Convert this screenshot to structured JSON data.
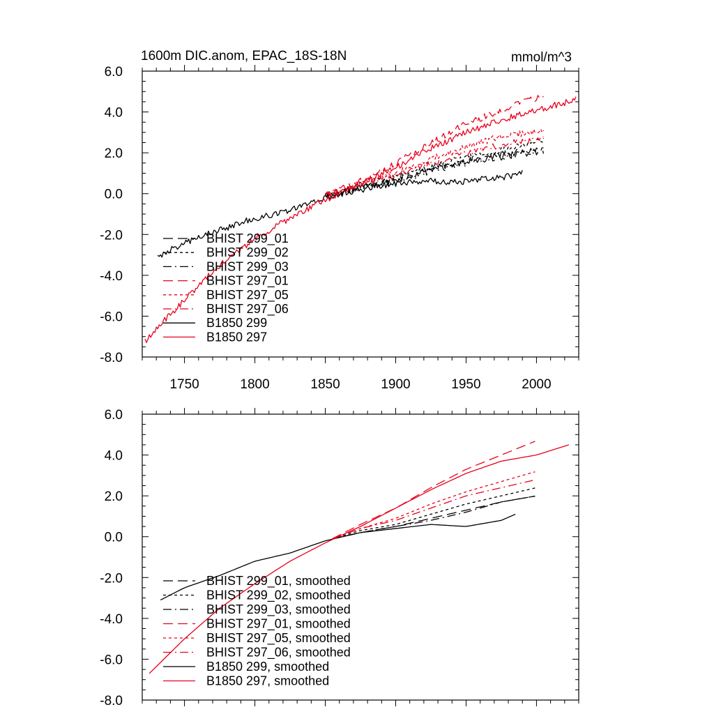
{
  "chart_data": [
    {
      "type": "line",
      "title": "1600m DIC.anom, EPAC_18S-18N",
      "units_label": "mmol/m^3",
      "xlabel": "",
      "ylabel": "",
      "xlim": [
        1720,
        2030
      ],
      "ylim": [
        -8.0,
        6.0
      ],
      "x_ticks": [
        1750,
        1800,
        1850,
        1900,
        1950,
        2000
      ],
      "x_tick_labels": [
        "1750",
        "1800",
        "1850",
        "1900",
        "1950",
        "2000"
      ],
      "y_ticks": [
        -8.0,
        -6.0,
        -4.0,
        -2.0,
        0.0,
        2.0,
        4.0,
        6.0
      ],
      "y_tick_labels": [
        "-8.0",
        "-6.0",
        "-4.0",
        "-2.0",
        "0.0",
        "2.0",
        "4.0",
        "6.0"
      ],
      "grid": false,
      "legend_position": "bottom-left",
      "series": [
        {
          "name": "BHIST 299_01",
          "color": "#000000",
          "dash": "long-dash",
          "noisy": true,
          "points": [
            [
              1850,
              -0.1
            ],
            [
              1875,
              0.3
            ],
            [
              1900,
              0.7
            ],
            [
              1925,
              1.2
            ],
            [
              1950,
              1.6
            ],
            [
              1975,
              1.9
            ],
            [
              2005,
              2.2
            ]
          ]
        },
        {
          "name": "BHIST 299_02",
          "color": "#000000",
          "dash": "short-dash",
          "noisy": true,
          "points": [
            [
              1850,
              -0.1
            ],
            [
              1875,
              0.4
            ],
            [
              1900,
              0.8
            ],
            [
              1925,
              1.3
            ],
            [
              1950,
              1.8
            ],
            [
              1975,
              2.1
            ],
            [
              2005,
              2.6
            ]
          ]
        },
        {
          "name": "BHIST 299_03",
          "color": "#000000",
          "dash": "dash-dot",
          "noisy": true,
          "points": [
            [
              1850,
              -0.1
            ],
            [
              1875,
              0.3
            ],
            [
              1900,
              0.6
            ],
            [
              1925,
              1.1
            ],
            [
              1950,
              1.5
            ],
            [
              1975,
              1.8
            ],
            [
              2005,
              2.1
            ]
          ]
        },
        {
          "name": "BHIST 297_01",
          "color": "#e8001c",
          "dash": "long-dash",
          "noisy": true,
          "points": [
            [
              1850,
              -0.1
            ],
            [
              1875,
              0.6
            ],
            [
              1900,
              1.5
            ],
            [
              1925,
              2.5
            ],
            [
              1950,
              3.4
            ],
            [
              1975,
              4.1
            ],
            [
              2005,
              4.8
            ]
          ]
        },
        {
          "name": "BHIST 297_05",
          "color": "#e8001c",
          "dash": "short-dash",
          "noisy": true,
          "points": [
            [
              1850,
              -0.1
            ],
            [
              1875,
              0.5
            ],
            [
              1900,
              1.0
            ],
            [
              1925,
              1.7
            ],
            [
              1950,
              2.3
            ],
            [
              1975,
              2.8
            ],
            [
              2005,
              3.1
            ]
          ]
        },
        {
          "name": "BHIST 297_06",
          "color": "#e8001c",
          "dash": "dash-dot",
          "noisy": true,
          "points": [
            [
              1850,
              -0.1
            ],
            [
              1875,
              0.5
            ],
            [
              1900,
              0.9
            ],
            [
              1925,
              1.5
            ],
            [
              1950,
              2.0
            ],
            [
              1975,
              2.4
            ],
            [
              2005,
              2.7
            ]
          ]
        },
        {
          "name": "B1850 299",
          "color": "#000000",
          "dash": "solid",
          "noisy": true,
          "points": [
            [
              1731,
              -3.1
            ],
            [
              1750,
              -2.4
            ],
            [
              1775,
              -1.8
            ],
            [
              1800,
              -1.2
            ],
            [
              1825,
              -0.8
            ],
            [
              1850,
              -0.2
            ],
            [
              1875,
              0.2
            ],
            [
              1900,
              0.5
            ],
            [
              1925,
              0.6
            ],
            [
              1950,
              0.6
            ],
            [
              1975,
              0.8
            ],
            [
              1990,
              1.0
            ]
          ]
        },
        {
          "name": "B1850 297",
          "color": "#e8001c",
          "dash": "solid",
          "noisy": true,
          "points": [
            [
              1722,
              -7.2
            ],
            [
              1750,
              -5.2
            ],
            [
              1775,
              -3.5
            ],
            [
              1800,
              -2.2
            ],
            [
              1825,
              -1.2
            ],
            [
              1850,
              -0.3
            ],
            [
              1875,
              0.5
            ],
            [
              1900,
              1.3
            ],
            [
              1925,
              2.2
            ],
            [
              1950,
              3.0
            ],
            [
              1975,
              3.6
            ],
            [
              2000,
              4.1
            ],
            [
              2028,
              4.6
            ]
          ]
        }
      ]
    },
    {
      "type": "line",
      "title": "",
      "units_label": "",
      "xlabel": "",
      "ylabel": "",
      "xlim": [
        1720,
        2030
      ],
      "ylim": [
        -8.0,
        6.0
      ],
      "x_ticks": [
        1750,
        1800,
        1850,
        1900,
        1950,
        2000
      ],
      "x_tick_labels": [],
      "y_ticks": [
        -8.0,
        -6.0,
        -4.0,
        -2.0,
        0.0,
        2.0,
        4.0,
        6.0
      ],
      "y_tick_labels": [
        "-8.0",
        "-6.0",
        "-4.0",
        "-2.0",
        "0.0",
        "2.0",
        "4.0",
        "6.0"
      ],
      "grid": false,
      "legend_position": "bottom-left",
      "series": [
        {
          "name": "BHIST 299_01, smoothed",
          "color": "#000000",
          "dash": "long-dash",
          "noisy": false,
          "points": [
            [
              1855,
              -0.1
            ],
            [
              1875,
              0.2
            ],
            [
              1900,
              0.5
            ],
            [
              1925,
              0.9
            ],
            [
              1950,
              1.3
            ],
            [
              1975,
              1.7
            ],
            [
              2000,
              2.0
            ]
          ]
        },
        {
          "name": "BHIST 299_02, smoothed",
          "color": "#000000",
          "dash": "short-dash",
          "noisy": false,
          "points": [
            [
              1855,
              -0.1
            ],
            [
              1875,
              0.3
            ],
            [
              1900,
              0.6
            ],
            [
              1925,
              1.1
            ],
            [
              1950,
              1.6
            ],
            [
              1975,
              2.0
            ],
            [
              2000,
              2.4
            ]
          ]
        },
        {
          "name": "BHIST 299_03, smoothed",
          "color": "#000000",
          "dash": "dash-dot",
          "noisy": false,
          "points": [
            [
              1855,
              -0.1
            ],
            [
              1875,
              0.2
            ],
            [
              1900,
              0.5
            ],
            [
              1925,
              0.8
            ],
            [
              1950,
              1.2
            ],
            [
              1975,
              1.7
            ],
            [
              2000,
              2.0
            ]
          ]
        },
        {
          "name": "BHIST 297_01, smoothed",
          "color": "#e8001c",
          "dash": "long-dash",
          "noisy": false,
          "points": [
            [
              1855,
              -0.1
            ],
            [
              1875,
              0.6
            ],
            [
              1900,
              1.4
            ],
            [
              1925,
              2.4
            ],
            [
              1950,
              3.3
            ],
            [
              1975,
              4.0
            ],
            [
              2000,
              4.7
            ]
          ]
        },
        {
          "name": "BHIST 297_05, smoothed",
          "color": "#e8001c",
          "dash": "short-dash",
          "noisy": false,
          "points": [
            [
              1855,
              -0.1
            ],
            [
              1875,
              0.4
            ],
            [
              1900,
              0.9
            ],
            [
              1925,
              1.6
            ],
            [
              1950,
              2.2
            ],
            [
              1975,
              2.7
            ],
            [
              2000,
              3.2
            ]
          ]
        },
        {
          "name": "BHIST 297_06, smoothed",
          "color": "#e8001c",
          "dash": "dash-dot",
          "noisy": false,
          "points": [
            [
              1855,
              -0.1
            ],
            [
              1875,
              0.4
            ],
            [
              1900,
              0.8
            ],
            [
              1925,
              1.4
            ],
            [
              1950,
              2.0
            ],
            [
              1975,
              2.4
            ],
            [
              2000,
              2.8
            ]
          ]
        },
        {
          "name": "B1850 299, smoothed",
          "color": "#000000",
          "dash": "solid",
          "noisy": false,
          "points": [
            [
              1733,
              -3.1
            ],
            [
              1750,
              -2.5
            ],
            [
              1775,
              -1.9
            ],
            [
              1800,
              -1.2
            ],
            [
              1825,
              -0.8
            ],
            [
              1850,
              -0.2
            ],
            [
              1875,
              0.2
            ],
            [
              1900,
              0.4
            ],
            [
              1925,
              0.6
            ],
            [
              1950,
              0.5
            ],
            [
              1975,
              0.8
            ],
            [
              1985,
              1.1
            ]
          ]
        },
        {
          "name": "B1850 297, smoothed",
          "color": "#e8001c",
          "dash": "solid",
          "noisy": false,
          "points": [
            [
              1725,
              -6.7
            ],
            [
              1750,
              -5.0
            ],
            [
              1775,
              -3.5
            ],
            [
              1800,
              -2.3
            ],
            [
              1825,
              -1.2
            ],
            [
              1850,
              -0.3
            ],
            [
              1875,
              0.5
            ],
            [
              1900,
              1.4
            ],
            [
              1925,
              2.3
            ],
            [
              1950,
              3.1
            ],
            [
              1975,
              3.7
            ],
            [
              2000,
              4.0
            ],
            [
              2023,
              4.5
            ]
          ]
        }
      ]
    }
  ]
}
